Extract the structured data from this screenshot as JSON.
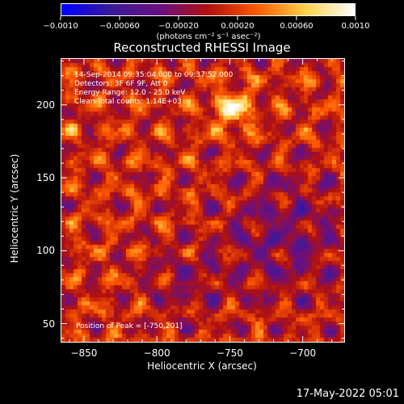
{
  "colorbar": {
    "min": -0.001,
    "max": 0.001,
    "tick_labels": [
      "−0.0010",
      "−0.00060",
      "−0.00020",
      "0.00020",
      "0.00060",
      "0.0010"
    ],
    "tick_values": [
      -0.001,
      -0.0006,
      -0.0002,
      0.0002,
      0.0006,
      0.001
    ],
    "unit_label": "(photons cm⁻² s⁻¹ asec⁻²)",
    "colors": [
      "#0000ff",
      "#3a1a9a",
      "#6a1080",
      "#b01010",
      "#ff5a00",
      "#ffd24a",
      "#ffffff"
    ]
  },
  "title": "Reconstructed RHESSI Image",
  "annotations": {
    "time_range": "14-Sep-2014 09:35:04.000 to 09:37:52.000",
    "detectors": "Detectors: 3F 6F 9F, Att 0",
    "energy_range": "Energy Range: 12.0 - 25.0 keV",
    "clean_counts": "Clean    Total counts: 1.14E+03",
    "peak_position": "Position of Peak = [-750,201]"
  },
  "axes": {
    "xlabel": "Heliocentric X (arcsec)",
    "ylabel": "Heliocentric Y (arcsec)",
    "xlim": [
      -866,
      -671
    ],
    "ylim": [
      37,
      232
    ],
    "xticks": [
      -850,
      -800,
      -750,
      -700
    ],
    "xtick_labels": [
      "−850",
      "−800",
      "−750",
      "−700"
    ],
    "yticks": [
      50,
      100,
      150,
      200
    ],
    "ytick_labels": [
      "50",
      "100",
      "150",
      "200"
    ]
  },
  "footer": {
    "date": "17-May-2022 05:01"
  }
}
